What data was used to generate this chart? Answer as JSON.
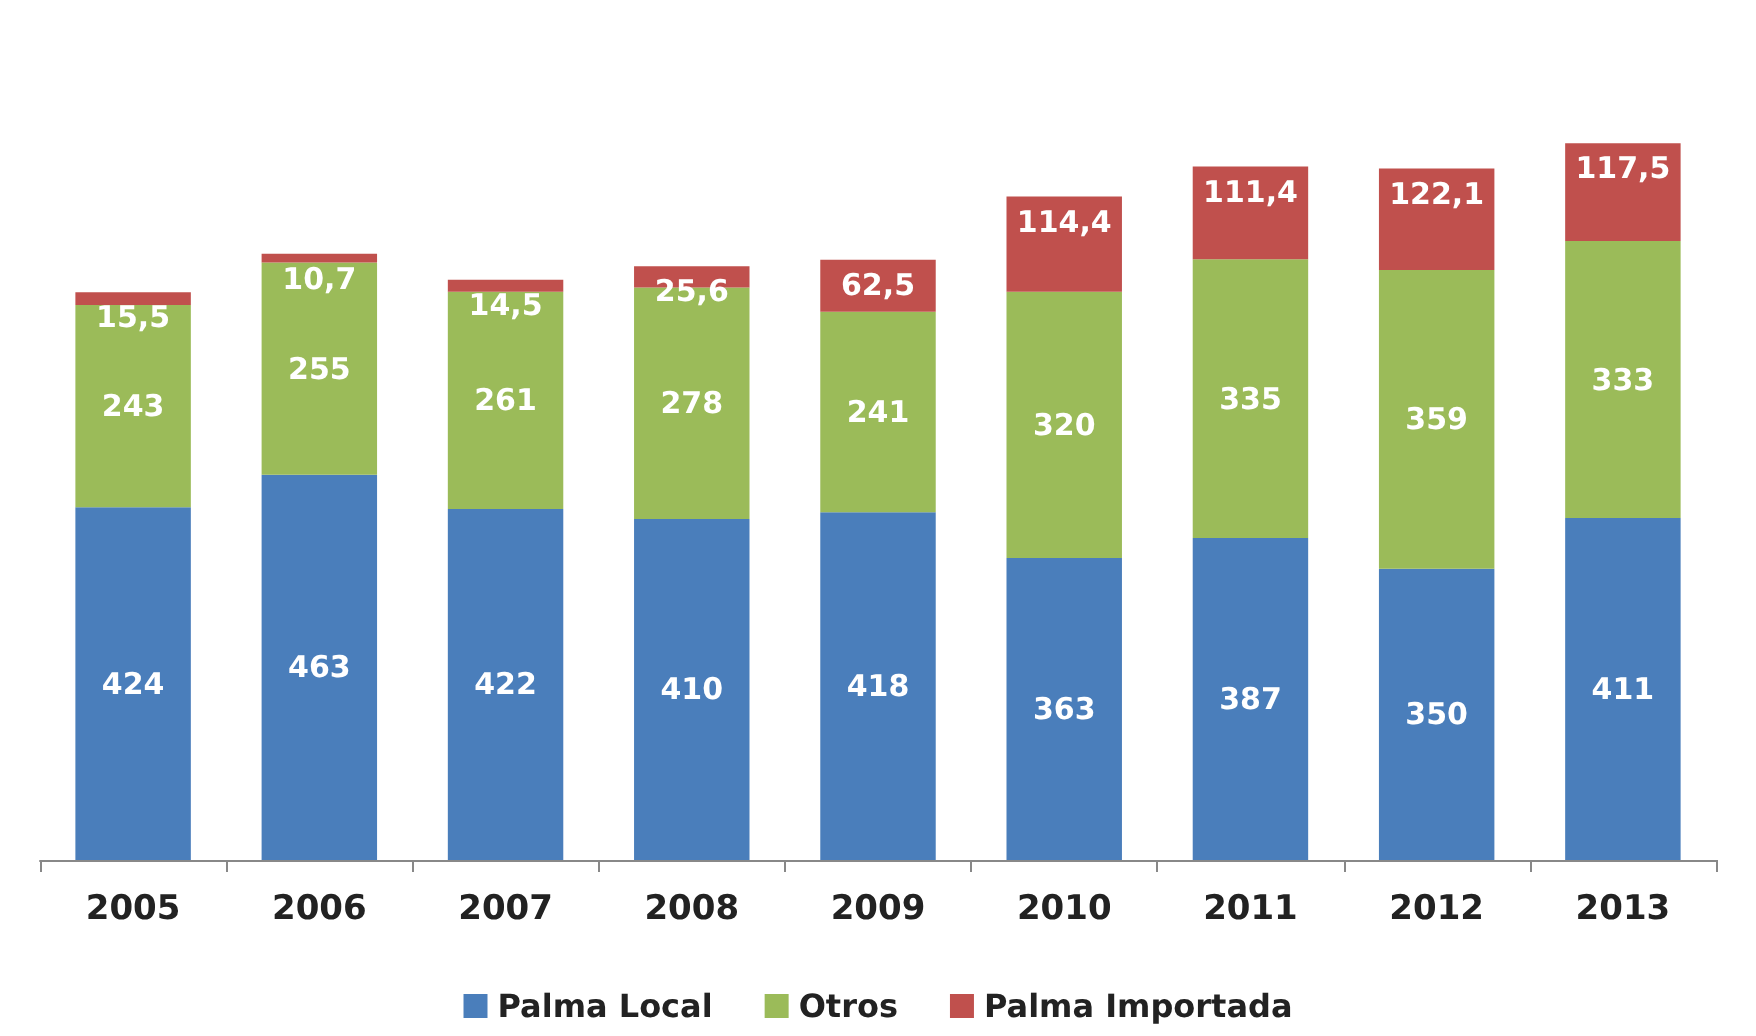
{
  "chart_data": {
    "type": "bar",
    "stacked": true,
    "legend": "bottom",
    "categories": [
      "2005",
      "2006",
      "2007",
      "2008",
      "2009",
      "2010",
      "2011",
      "2012",
      "2013"
    ],
    "series": [
      {
        "name": "Palma Local",
        "color": "#4a7ebb",
        "values": [
          424,
          463,
          422,
          410,
          418,
          363,
          387,
          350,
          411
        ]
      },
      {
        "name": "Otros",
        "color": "#9bbb59",
        "values": [
          243,
          255,
          261,
          278,
          241,
          320,
          335,
          359,
          333
        ]
      },
      {
        "name": "Palma Importada",
        "color": "#c0504d",
        "values": [
          15.5,
          10.7,
          14.5,
          25.6,
          62.5,
          114.4,
          111.4,
          122.1,
          117.5
        ],
        "value_labels": [
          "15,5",
          "10,7",
          "14,5",
          "25,6",
          "62,5",
          "114,4",
          "111,4",
          "122,1",
          "117,5"
        ]
      }
    ],
    "data_labels": true
  }
}
